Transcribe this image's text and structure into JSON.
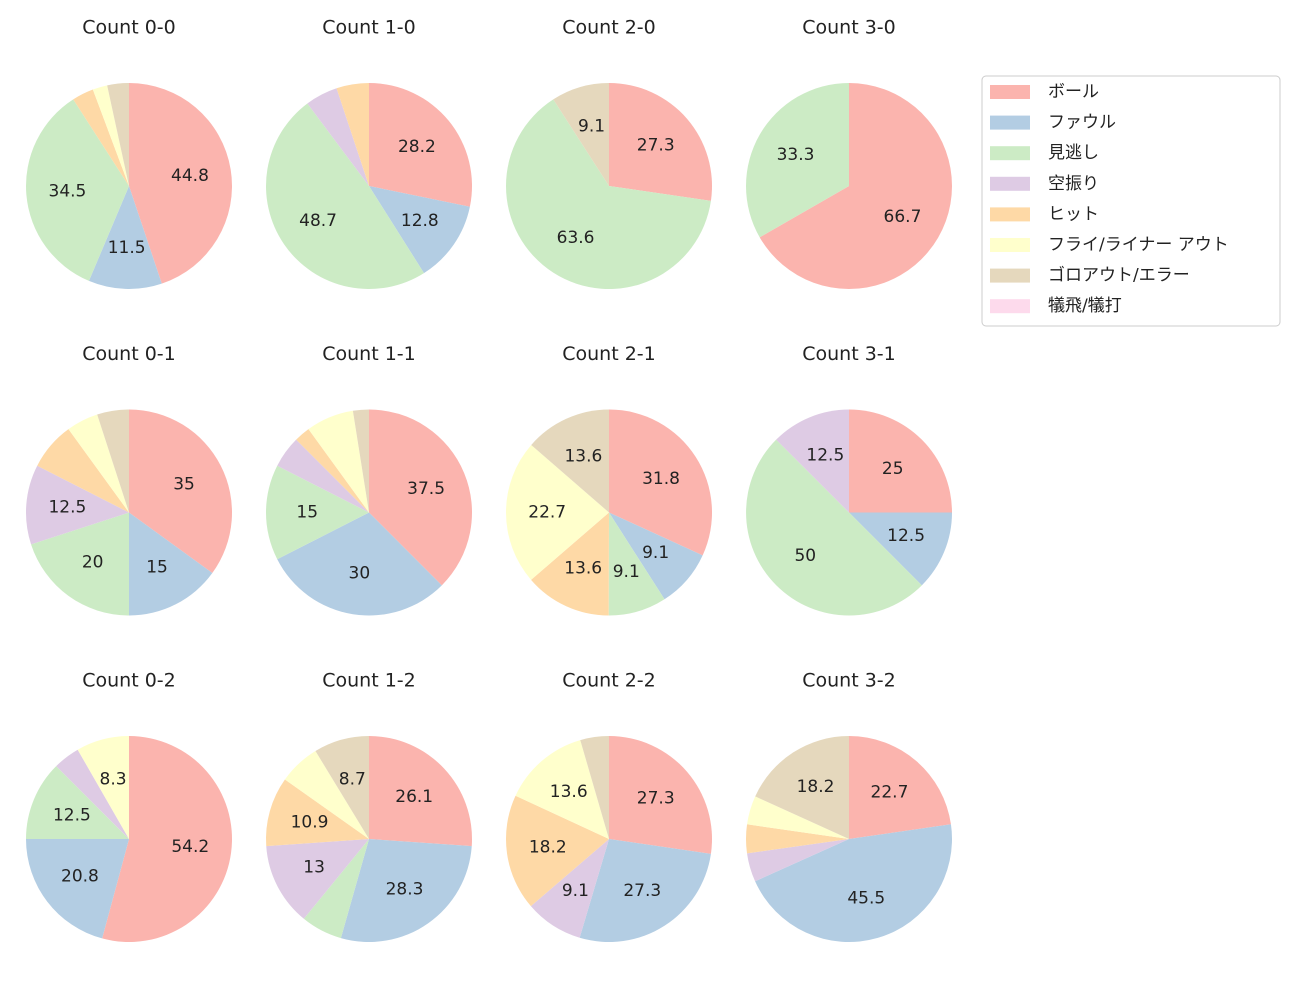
{
  "legend": {
    "labels": [
      "ボール",
      "ファウル",
      "見逃し",
      "空振り",
      "ヒット",
      "フライ/ライナー アウト",
      "ゴロアウト/エラー",
      "犠飛/犠打"
    ],
    "colors": [
      "#fbb4ae",
      "#b3cde3",
      "#ccebc5",
      "#decbe4",
      "#fed9a6",
      "#ffffcc",
      "#e5d8bd",
      "#fddaec"
    ],
    "loc": "upper right"
  },
  "chart_data": [
    {
      "type": "pie",
      "title": "Count 0-0",
      "values": [
        44.8,
        11.5,
        34.5,
        0,
        3.4,
        2.3,
        3.4,
        0
      ]
    },
    {
      "type": "pie",
      "title": "Count 1-0",
      "values": [
        28.2,
        12.8,
        48.7,
        5.1,
        5.1,
        0,
        0,
        0
      ]
    },
    {
      "type": "pie",
      "title": "Count 2-0",
      "values": [
        27.3,
        0,
        63.6,
        0,
        0,
        0,
        9.1,
        0
      ]
    },
    {
      "type": "pie",
      "title": "Count 3-0",
      "values": [
        66.7,
        0,
        33.3,
        0,
        0,
        0,
        0,
        0
      ]
    },
    {
      "type": "pie",
      "title": "Count 0-1",
      "values": [
        35.0,
        15.0,
        20.0,
        12.5,
        7.5,
        5.0,
        5.0,
        0
      ]
    },
    {
      "type": "pie",
      "title": "Count 1-1",
      "values": [
        37.5,
        30.0,
        15.0,
        5.0,
        2.5,
        7.5,
        2.5,
        0
      ]
    },
    {
      "type": "pie",
      "title": "Count 2-1",
      "values": [
        31.8,
        9.1,
        9.1,
        0,
        13.6,
        22.7,
        13.6,
        0
      ]
    },
    {
      "type": "pie",
      "title": "Count 3-1",
      "values": [
        25.0,
        12.5,
        50.0,
        12.5,
        0,
        0,
        0,
        0
      ]
    },
    {
      "type": "pie",
      "title": "Count 0-2",
      "values": [
        54.2,
        20.8,
        12.5,
        4.2,
        0,
        8.3,
        0,
        0
      ]
    },
    {
      "type": "pie",
      "title": "Count 1-2",
      "values": [
        26.1,
        28.3,
        6.5,
        13.0,
        10.9,
        6.5,
        8.7,
        0
      ]
    },
    {
      "type": "pie",
      "title": "Count 2-2",
      "values": [
        27.3,
        27.3,
        0,
        9.1,
        18.2,
        13.6,
        4.5,
        0
      ]
    },
    {
      "type": "pie",
      "title": "Count 3-2",
      "values": [
        22.7,
        45.5,
        0,
        4.5,
        4.5,
        4.5,
        18.2,
        0
      ]
    }
  ]
}
